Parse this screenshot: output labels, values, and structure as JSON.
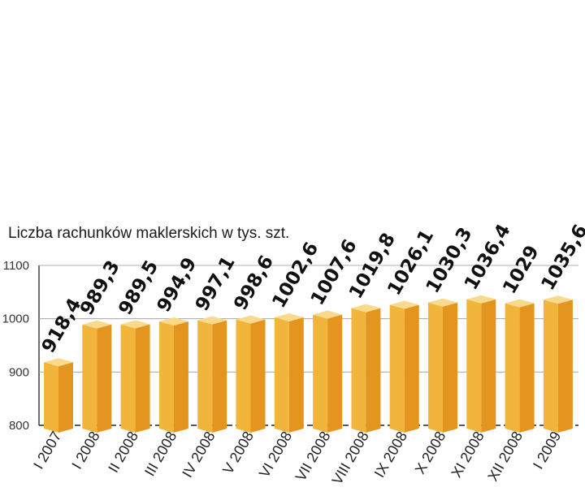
{
  "chart_data": {
    "type": "bar",
    "title": "Liczba rachunków maklerskich w tys. szt.",
    "categories": [
      "I 2007",
      "I 2008",
      "II 2008",
      "III 2008",
      "IV 2008",
      "V 2008",
      "VI 2008",
      "VII 2008",
      "VIII 2008",
      "IX 2008",
      "X 2008",
      "XI 2008",
      "XII 2008",
      "I 2009"
    ],
    "values": [
      918.4,
      989.3,
      989.5,
      994.9,
      997.1,
      998.6,
      1002.6,
      1007.6,
      1019.8,
      1026.1,
      1030.3,
      1036.4,
      1029,
      1035.6
    ],
    "data_labels": [
      "918,4",
      "989,3",
      "989,5",
      "994,9",
      "997,1",
      "998,6",
      "1002,6",
      "1007,6",
      "1019,8",
      "1026,1",
      "1030,3",
      "1036,4",
      "1029",
      "1035,6"
    ],
    "ylim": [
      800,
      1100
    ],
    "yticks": [
      800,
      900,
      1000,
      1100
    ],
    "ytick_labels": [
      "800",
      "900",
      "1000",
      "1100"
    ],
    "grid": true,
    "colors": {
      "bar_front": "#f2b53c",
      "bar_side": "#e3951f",
      "bar_top": "#f9d98a",
      "gridline": "#999999",
      "axis": "#222222"
    }
  }
}
